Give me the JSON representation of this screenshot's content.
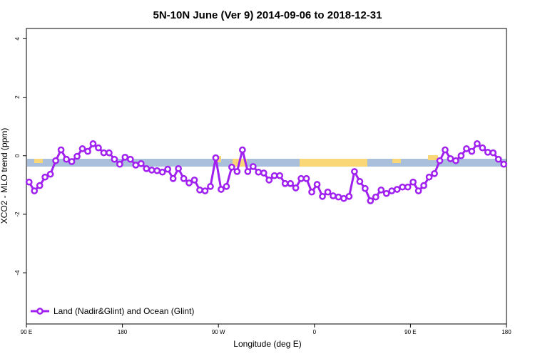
{
  "chart_data": {
    "type": "line",
    "title": "5N-10N June (Ver 9)   2014-09-06 to 2018-12-31",
    "x_label": "Longitude (deg E)",
    "y_label": "XCO2 - MLO trend (ppm)",
    "xlim": [
      90,
      540
    ],
    "ylim": [
      -5.75,
      4.35
    ],
    "xticks": [
      {
        "value": 90,
        "label": "90 E"
      },
      180,
      {
        "value": 270,
        "label": "90 W"
      },
      {
        "value": 360,
        "label": "0"
      },
      {
        "value": 450,
        "label": "90 E"
      },
      {
        "value": 540,
        "label": "180"
      }
    ],
    "yticks": [
      -4,
      -2,
      0,
      2,
      4
    ],
    "x": [
      92.5,
      97.5,
      102.5,
      107.5,
      112.5,
      117.5,
      122.5,
      127.5,
      132.5,
      137.5,
      142.5,
      147.5,
      152.5,
      157.5,
      162.5,
      167.5,
      172.5,
      177.5,
      182.5,
      187.5,
      192.5,
      197.5,
      202.5,
      207.5,
      212.5,
      217.5,
      222.5,
      227.5,
      232.5,
      237.5,
      242.5,
      247.5,
      252.5,
      257.5,
      262.5,
      267.5,
      272.5,
      277.5,
      282.5,
      287.5,
      292.5,
      297.5,
      302.5,
      307.5,
      312.5,
      317.5,
      322.5,
      327.5,
      332.5,
      337.5,
      342.5,
      347.5,
      352.5,
      357.5,
      362.5,
      367.5,
      372.5,
      377.5,
      382.5,
      387.5,
      392.5,
      397.5,
      402.5,
      407.5,
      412.5,
      417.5,
      422.5,
      427.5,
      432.5,
      437.5,
      442.5,
      447.5,
      452.5,
      457.5,
      462.5,
      467.5,
      472.5,
      477.5,
      482.5,
      487.5,
      492.5,
      497.5,
      502.5,
      507.5,
      512.5,
      517.5,
      522.5,
      527.5,
      532.5,
      537.5
    ],
    "series": [
      {
        "name": "Land (Nadir&Glint) and Ocean (Glint)",
        "color": "#a020f0",
        "values": [
          -0.9,
          -1.2,
          -1.02,
          -0.73,
          -0.63,
          -0.17,
          0.2,
          -0.12,
          -0.2,
          -0.02,
          0.24,
          0.15,
          0.41,
          0.27,
          0.1,
          0.1,
          -0.12,
          -0.29,
          -0.05,
          -0.12,
          -0.32,
          -0.27,
          -0.44,
          -0.49,
          -0.51,
          -0.56,
          -0.46,
          -0.78,
          -0.44,
          -0.78,
          -0.93,
          -0.83,
          -1.17,
          -1.2,
          -1.05,
          -0.07,
          -1.15,
          -1.05,
          -0.39,
          -0.54,
          0.2,
          -0.54,
          -0.37,
          -0.56,
          -0.59,
          -0.83,
          -0.68,
          -0.68,
          -0.95,
          -0.95,
          -1.1,
          -0.78,
          -0.78,
          -1.24,
          -0.98,
          -1.39,
          -1.24,
          -1.37,
          -1.41,
          -1.46,
          -1.39,
          -0.54,
          -0.88,
          -1.12,
          -1.54,
          -1.41,
          -1.17,
          -1.29,
          -1.2,
          -1.15,
          -1.07,
          -1.07,
          -0.9,
          -1.2,
          -1.02,
          -0.73,
          -0.61,
          -0.17,
          0.2,
          -0.1,
          -0.17,
          0,
          0.24,
          0.15,
          0.41,
          0.27,
          0.12,
          0.1,
          -0.12,
          -0.29
        ]
      }
    ],
    "legend": "bottom-left"
  }
}
